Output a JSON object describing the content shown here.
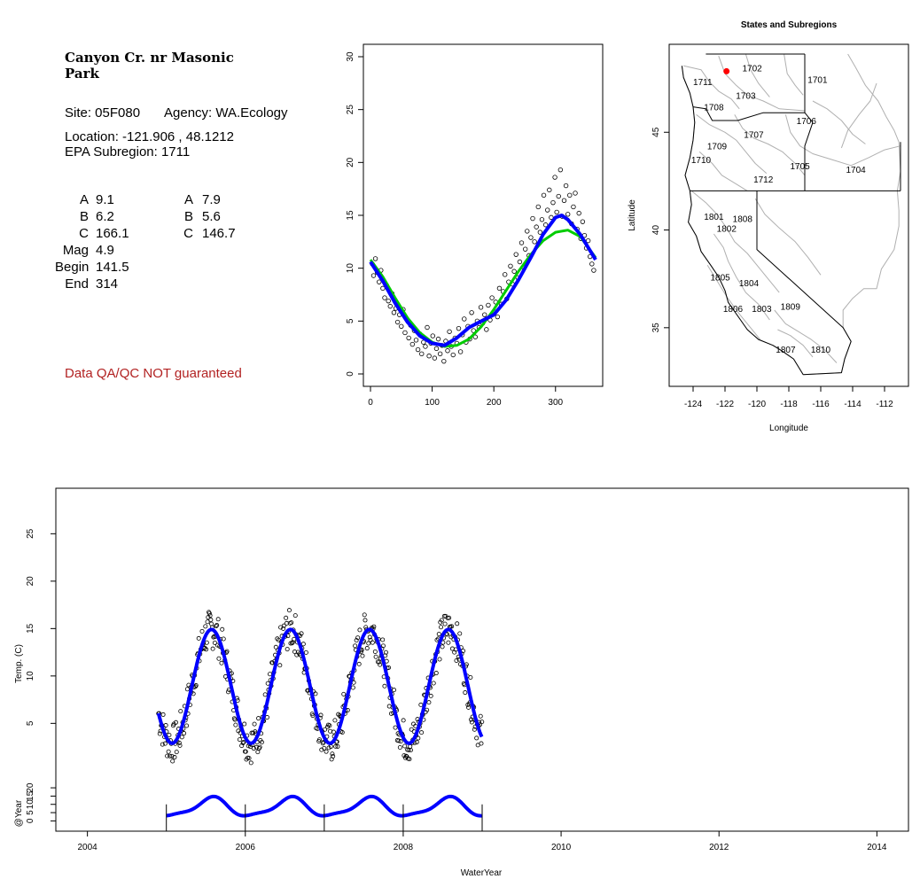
{
  "site": {
    "name_line1": "Canyon Cr. nr Masonic",
    "name_line2": "Park",
    "site_label": "Site: 05F080",
    "agency_label": "Agency: WA.Ecology",
    "location_label": "Location: -121.906 , 48.1212",
    "subregion_label": "EPA Subregion: 1711",
    "params": [
      {
        "k": "A",
        "v1": "9.1",
        "k2": "A",
        "v2": "7.9"
      },
      {
        "k": "B",
        "v1": "6.2",
        "k2": "B",
        "v2": "5.6"
      },
      {
        "k": "C",
        "v1": "166.1",
        "k2": "C",
        "v2": "146.7"
      },
      {
        "k": "Mag",
        "v1": "4.9",
        "k2": "",
        "v2": ""
      },
      {
        "k": "Begin",
        "v1": "141.5",
        "k2": "",
        "v2": ""
      },
      {
        "k": "End",
        "v1": "314",
        "k2": "",
        "v2": ""
      }
    ],
    "qa_note": "Data QA/QC NOT guaranteed"
  },
  "chart_data": [
    {
      "type": "scatter",
      "xlim": [
        0,
        365
      ],
      "ylim": [
        0,
        30
      ],
      "x_ticks": [
        0,
        100,
        200,
        300
      ],
      "y_ticks": [
        0,
        5,
        10,
        15,
        20,
        25,
        30
      ],
      "series": [
        {
          "kind": "points",
          "color": "#000000",
          "points": [
            [
              3,
              10.4
            ],
            [
              5,
              9.3
            ],
            [
              8,
              10.9
            ],
            [
              11,
              9.6
            ],
            [
              14,
              8.7
            ],
            [
              17,
              9.8
            ],
            [
              20,
              8.1
            ],
            [
              23,
              7.2
            ],
            [
              26,
              8.4
            ],
            [
              29,
              6.9
            ],
            [
              32,
              6.4
            ],
            [
              35,
              7.6
            ],
            [
              38,
              5.8
            ],
            [
              41,
              6.2
            ],
            [
              44,
              4.9
            ],
            [
              47,
              5.6
            ],
            [
              50,
              4.5
            ],
            [
              53,
              6.1
            ],
            [
              56,
              3.9
            ],
            [
              59,
              5.2
            ],
            [
              62,
              3.4
            ],
            [
              65,
              4.6
            ],
            [
              68,
              2.8
            ],
            [
              71,
              4.1
            ],
            [
              74,
              3.2
            ],
            [
              77,
              2.3
            ],
            [
              80,
              3.8
            ],
            [
              83,
              1.9
            ],
            [
              86,
              3.0
            ],
            [
              89,
              2.6
            ],
            [
              92,
              4.4
            ],
            [
              95,
              1.7
            ],
            [
              98,
              2.9
            ],
            [
              101,
              3.6
            ],
            [
              104,
              1.5
            ],
            [
              107,
              2.4
            ],
            [
              110,
              3.3
            ],
            [
              113,
              1.9
            ],
            [
              116,
              2.7
            ],
            [
              119,
              1.2
            ],
            [
              122,
              3.1
            ],
            [
              125,
              2.2
            ],
            [
              128,
              4.0
            ],
            [
              131,
              2.6
            ],
            [
              134,
              1.8
            ],
            [
              137,
              3.4
            ],
            [
              140,
              2.9
            ],
            [
              143,
              4.3
            ],
            [
              146,
              2.1
            ],
            [
              149,
              3.7
            ],
            [
              152,
              5.2
            ],
            [
              155,
              3.0
            ],
            [
              158,
              4.5
            ],
            [
              161,
              3.3
            ],
            [
              164,
              5.8
            ],
            [
              167,
              4.1
            ],
            [
              170,
              3.5
            ],
            [
              173,
              5.0
            ],
            [
              176,
              4.4
            ],
            [
              179,
              6.3
            ],
            [
              182,
              4.8
            ],
            [
              185,
              5.6
            ],
            [
              188,
              4.2
            ],
            [
              191,
              6.5
            ],
            [
              194,
              5.1
            ],
            [
              197,
              7.2
            ],
            [
              200,
              5.9
            ],
            [
              203,
              6.8
            ],
            [
              206,
              5.4
            ],
            [
              209,
              8.1
            ],
            [
              212,
              6.6
            ],
            [
              215,
              7.8
            ],
            [
              218,
              9.4
            ],
            [
              221,
              7.1
            ],
            [
              224,
              8.7
            ],
            [
              227,
              10.2
            ],
            [
              230,
              8.5
            ],
            [
              233,
              9.7
            ],
            [
              236,
              11.3
            ],
            [
              239,
              9.1
            ],
            [
              242,
              10.6
            ],
            [
              245,
              12.4
            ],
            [
              248,
              10.1
            ],
            [
              251,
              11.8
            ],
            [
              254,
              13.5
            ],
            [
              257,
              11.2
            ],
            [
              260,
              12.9
            ],
            [
              263,
              14.7
            ],
            [
              266,
              12.5
            ],
            [
              269,
              13.9
            ],
            [
              272,
              15.8
            ],
            [
              275,
              13.4
            ],
            [
              278,
              14.6
            ],
            [
              281,
              16.9
            ],
            [
              284,
              14.1
            ],
            [
              287,
              15.5
            ],
            [
              290,
              17.4
            ],
            [
              293,
              14.8
            ],
            [
              296,
              16.2
            ],
            [
              299,
              18.6
            ],
            [
              302,
              15.3
            ],
            [
              305,
              16.8
            ],
            [
              308,
              19.3
            ],
            [
              311,
              14.9
            ],
            [
              314,
              16.4
            ],
            [
              317,
              17.8
            ],
            [
              320,
              15.1
            ],
            [
              323,
              16.9
            ],
            [
              326,
              14.2
            ],
            [
              329,
              15.8
            ],
            [
              332,
              17.1
            ],
            [
              335,
              13.7
            ],
            [
              338,
              15.2
            ],
            [
              341,
              12.8
            ],
            [
              344,
              14.4
            ],
            [
              347,
              13.1
            ],
            [
              350,
              11.9
            ],
            [
              353,
              12.6
            ],
            [
              356,
              11.1
            ],
            [
              359,
              10.4
            ],
            [
              362,
              9.8
            ]
          ]
        },
        {
          "kind": "line",
          "color": "#00cc00",
          "width": 3,
          "points": [
            [
              0,
              10.8
            ],
            [
              20,
              9.2
            ],
            [
              40,
              7.2
            ],
            [
              60,
              5.3
            ],
            [
              80,
              3.9
            ],
            [
              100,
              3.0
            ],
            [
              120,
              2.6
            ],
            [
              140,
              2.7
            ],
            [
              160,
              3.3
            ],
            [
              180,
              4.5
            ],
            [
              200,
              6.1
            ],
            [
              220,
              7.9
            ],
            [
              240,
              9.7
            ],
            [
              260,
              11.3
            ],
            [
              280,
              12.6
            ],
            [
              300,
              13.4
            ],
            [
              320,
              13.6
            ],
            [
              340,
              13.0
            ],
            [
              365,
              11.0
            ]
          ]
        },
        {
          "kind": "line",
          "color": "#0000ff",
          "width": 4,
          "points": [
            [
              0,
              10.6
            ],
            [
              20,
              8.8
            ],
            [
              40,
              6.7
            ],
            [
              60,
              4.9
            ],
            [
              80,
              3.6
            ],
            [
              100,
              2.9
            ],
            [
              120,
              2.7
            ],
            [
              140,
              3.4
            ],
            [
              160,
              4.4
            ],
            [
              180,
              5.0
            ],
            [
              200,
              5.6
            ],
            [
              220,
              7.0
            ],
            [
              240,
              8.9
            ],
            [
              260,
              11.0
            ],
            [
              280,
              13.2
            ],
            [
              300,
              14.8
            ],
            [
              310,
              15.0
            ],
            [
              320,
              14.6
            ],
            [
              340,
              13.2
            ],
            [
              365,
              10.8
            ]
          ]
        }
      ]
    },
    {
      "type": "map",
      "title": "States and Subregions",
      "xlabel": "Longitude",
      "ylabel": "Latitude",
      "xlim": [
        -125.5,
        -110.5
      ],
      "ylim": [
        32,
        49.5
      ],
      "x_ticks": [
        -124,
        -122,
        -120,
        -118,
        -116,
        -114,
        -112
      ],
      "y_ticks": [
        35,
        40,
        45
      ],
      "site_point": {
        "lon": -121.906,
        "lat": 48.1212,
        "color": "#ff0000"
      },
      "region_labels": [
        {
          "t": "1702",
          "lon": -120.3,
          "lat": 48.3
        },
        {
          "t": "1701",
          "lon": -116.2,
          "lat": 47.7
        },
        {
          "t": "1711",
          "lon": -123.4,
          "lat": 47.6
        },
        {
          "t": "1703",
          "lon": -120.7,
          "lat": 46.9
        },
        {
          "t": "1708",
          "lon": -122.7,
          "lat": 46.3
        },
        {
          "t": "1706",
          "lon": -116.9,
          "lat": 45.6
        },
        {
          "t": "1707",
          "lon": -120.2,
          "lat": 44.9
        },
        {
          "t": "1709",
          "lon": -122.5,
          "lat": 44.3
        },
        {
          "t": "1710",
          "lon": -123.5,
          "lat": 43.6
        },
        {
          "t": "1705",
          "lon": -117.3,
          "lat": 43.3
        },
        {
          "t": "1704",
          "lon": -113.8,
          "lat": 43.1
        },
        {
          "t": "1712",
          "lon": -119.6,
          "lat": 42.6
        },
        {
          "t": "1801",
          "lon": -122.7,
          "lat": 40.7
        },
        {
          "t": "1808",
          "lon": -120.9,
          "lat": 40.6
        },
        {
          "t": "1802",
          "lon": -121.9,
          "lat": 40.1
        },
        {
          "t": "1805",
          "lon": -122.3,
          "lat": 37.6
        },
        {
          "t": "1804",
          "lon": -120.5,
          "lat": 37.3
        },
        {
          "t": "1806",
          "lon": -121.5,
          "lat": 36.0
        },
        {
          "t": "1803",
          "lon": -119.7,
          "lat": 36.0
        },
        {
          "t": "1809",
          "lon": -117.9,
          "lat": 36.1
        },
        {
          "t": "1807",
          "lon": -118.2,
          "lat": 33.9
        },
        {
          "t": "1810",
          "lon": -116.0,
          "lat": 33.9
        }
      ]
    },
    {
      "type": "scatter",
      "xlabel": "WaterYear",
      "ylabel": "Temp. (C)",
      "ylabel_lower": "@Year",
      "xlim": [
        2003.6,
        2014.4
      ],
      "ylim": [
        1.2,
        29.8
      ],
      "x_ticks": [
        2004,
        2006,
        2008,
        2010,
        2012,
        2014
      ],
      "y_ticks": [
        5,
        10,
        15,
        20,
        25
      ],
      "lower_ylim": [
        -3,
        27
      ],
      "lower_y_ticks": [
        0,
        5,
        10,
        15,
        20
      ],
      "year_markers": [
        2005,
        2006,
        2007,
        2008,
        2009
      ]
    }
  ]
}
